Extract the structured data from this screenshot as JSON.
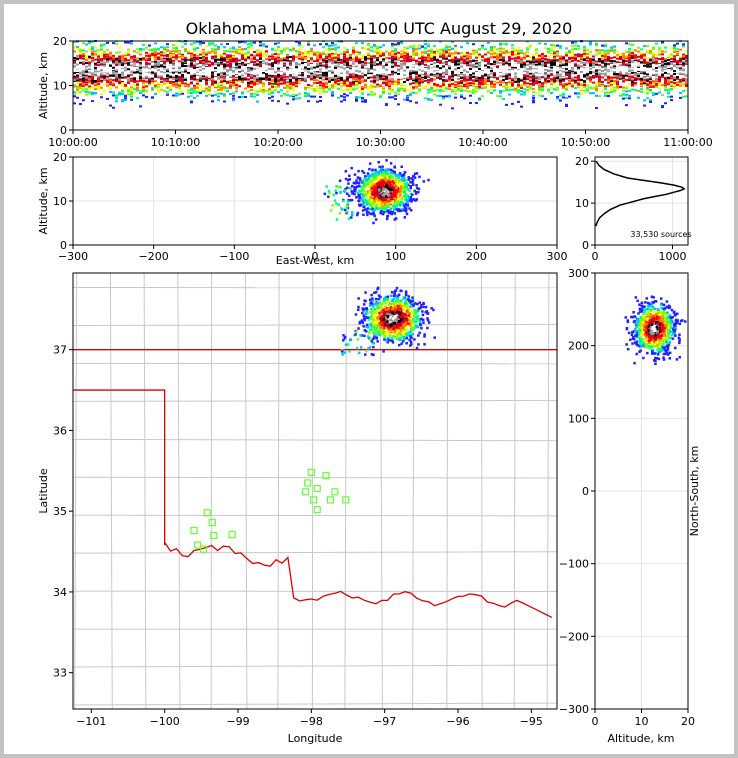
{
  "title": "Oklahoma LMA 1000-1100 UTC August 29, 2020",
  "colors": {
    "state_border": "#dd0000",
    "county_lines": "#c8c8c8",
    "stations": "#66ff33",
    "density_ramp": [
      "#2020ff",
      "#00bfff",
      "#00ff7f",
      "#7fff00",
      "#ffff00",
      "#ff7f00",
      "#ff0000",
      "#cc0033",
      "#000000",
      "#9a9a9a",
      "#ffffff"
    ]
  },
  "chart_data": [
    {
      "type": "heatmap",
      "panel": "altitude-time",
      "ylabel": "Altitude, km",
      "ylim": [
        0,
        20
      ],
      "yticks": [
        "0",
        "10",
        "20"
      ],
      "xticks": [
        "10:00:00",
        "10:10:00",
        "10:20:00",
        "10:30:00",
        "10:40:00",
        "10:50:00",
        "11:00:00"
      ],
      "xlim": [
        "10:00:00",
        "11:00:00"
      ],
      "band_center_km": 13.5,
      "band_spread_km": 3
    },
    {
      "type": "heatmap",
      "panel": "altitude-east-west",
      "xlabel": "East-West, km",
      "ylabel": "Altitude, km",
      "xlim": [
        -300,
        300
      ],
      "ylim": [
        0,
        20
      ],
      "xticks": [
        "−300",
        "−200",
        "−100",
        "0",
        "100",
        "200",
        "300"
      ],
      "yticks": [
        "0",
        "10",
        "20"
      ],
      "cluster": {
        "x_km": 85,
        "z_km": 12.5
      }
    },
    {
      "type": "line",
      "panel": "altitude-histogram",
      "annotation": "33,530 sources",
      "xlim": [
        0,
        1200
      ],
      "ylim": [
        0,
        21
      ],
      "xticks": [
        "0",
        "1000"
      ],
      "yticks": [
        "0",
        "10",
        "20"
      ],
      "profile": {
        "x": [
          10,
          30,
          60,
          120,
          200,
          320,
          460,
          620,
          780,
          920,
          1020,
          1100,
          1150,
          1120,
          1020,
          860,
          640,
          420,
          240,
          120,
          50,
          15
        ],
        "z": [
          4.5,
          5.5,
          6.5,
          7.5,
          8.5,
          9.5,
          10.2,
          11,
          11.6,
          12.1,
          12.6,
          13.0,
          13.4,
          13.8,
          14.3,
          14.8,
          15.4,
          16.0,
          17.0,
          18.0,
          19.0,
          20.0
        ]
      }
    },
    {
      "type": "scatter",
      "panel": "plan-view",
      "xlabel": "Longitude",
      "ylabel": "Latitude",
      "xlim": [
        -101.25,
        -94.65
      ],
      "ylim": [
        32.55,
        37.95
      ],
      "xticks": [
        "−101",
        "−100",
        "−99",
        "−98",
        "−97",
        "−96",
        "−95"
      ],
      "yticks": [
        "33",
        "34",
        "35",
        "36",
        "37"
      ],
      "cluster": {
        "lon": -96.9,
        "lat": 37.4
      },
      "stations": [
        {
          "lon": -99.42,
          "lat": 34.98
        },
        {
          "lon": -99.35,
          "lat": 34.86
        },
        {
          "lon": -99.6,
          "lat": 34.76
        },
        {
          "lon": -99.33,
          "lat": 34.7
        },
        {
          "lon": -99.55,
          "lat": 34.58
        },
        {
          "lon": -99.47,
          "lat": 34.53
        },
        {
          "lon": -99.08,
          "lat": 34.71
        },
        {
          "lon": -98.0,
          "lat": 35.48
        },
        {
          "lon": -97.8,
          "lat": 35.44
        },
        {
          "lon": -98.05,
          "lat": 35.35
        },
        {
          "lon": -97.92,
          "lat": 35.28
        },
        {
          "lon": -98.08,
          "lat": 35.24
        },
        {
          "lon": -97.68,
          "lat": 35.24
        },
        {
          "lon": -97.97,
          "lat": 35.14
        },
        {
          "lon": -97.74,
          "lat": 35.14
        },
        {
          "lon": -97.53,
          "lat": 35.14
        },
        {
          "lon": -97.92,
          "lat": 35.02
        }
      ]
    },
    {
      "type": "heatmap",
      "panel": "north-south-altitude",
      "xlabel": "Altitude, km",
      "ylabel": "North-South, km",
      "xlim": [
        0,
        20
      ],
      "ylim": [
        -300,
        300
      ],
      "xticks": [
        "0",
        "10",
        "20"
      ],
      "yticks": [
        "−300",
        "−200",
        "−100",
        "0",
        "100",
        "200",
        "300"
      ],
      "cluster": {
        "z_km": 12.5,
        "y_km": 225
      }
    }
  ]
}
